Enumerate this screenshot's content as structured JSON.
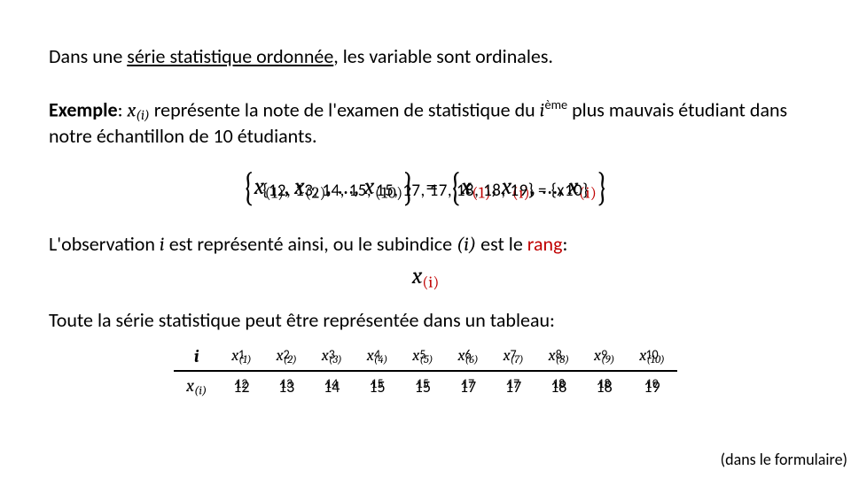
{
  "intro": {
    "prefix": "Dans une ",
    "underlined": "série statistique ordonnée",
    "suffix": ", les variable sont ordinales."
  },
  "example": {
    "label": "Exemple",
    "sep": ": ",
    "part1": "x",
    "sub1": "(i)",
    "part2": " représente la note de l'examen de statistique du ",
    "i_val": "i",
    "i_sup": "ème",
    "part3": " plus mauvais étudiant dans notre échantillon de 10 étudiants."
  },
  "equation": {
    "math_text": "x(1), x(2), …, x(10)  =  x(1), x(2), …, x(10)",
    "overlay": "{12, 13, 14, 15, 15, 17, 17, 18, 18, 19} = {x10}",
    "lhs_terms": [
      "x",
      "x",
      "x"
    ],
    "lhs_subs": [
      "(1)",
      "(2)",
      "(10)"
    ],
    "rhs_terms": [
      "x",
      "x"
    ],
    "rhs_subs": [
      "(1)",
      "(i)"
    ],
    "ellipsis": "…",
    "equals": "="
  },
  "obs_line": {
    "p1": "L'observation ",
    "i": "i",
    "p2": " est représenté ainsi, ou le subindice ",
    "paren_i": "(i)",
    "p3": " est le ",
    "rang": "rang",
    "p4": ":"
  },
  "sub_eq": {
    "x": "x",
    "idx": "(i)"
  },
  "table_intro": "Toute la série statistique peut être représentée dans un tableau:",
  "table": {
    "row1_label": "i",
    "row2_label": "x(i)",
    "headers_sub": [
      "(1)",
      "(2)",
      "(3)",
      "(4)",
      "(5)",
      "(6)",
      "(7)",
      "(8)",
      "(9)",
      "(10)"
    ],
    "headers_overlay": [
      "1",
      "2",
      "3",
      "4",
      "5",
      "6",
      "7",
      "8",
      "9",
      "10"
    ],
    "values": [
      "12",
      "13",
      "14",
      "15",
      "15",
      "17",
      "17",
      "18",
      "18",
      "19"
    ],
    "values_under": [
      "12",
      "13",
      "14",
      "15",
      "15",
      "17",
      "17",
      "18",
      "18",
      "19"
    ]
  },
  "footnote": "(dans le formulaire)",
  "colors": {
    "text": "#000000",
    "accent_red": "#c00000",
    "bg": "#ffffff",
    "rule": "#000000"
  },
  "typography": {
    "body_font": "Calibri",
    "math_font": "Cambria Math",
    "body_size_pt": 17,
    "math_size_pt": 20
  }
}
